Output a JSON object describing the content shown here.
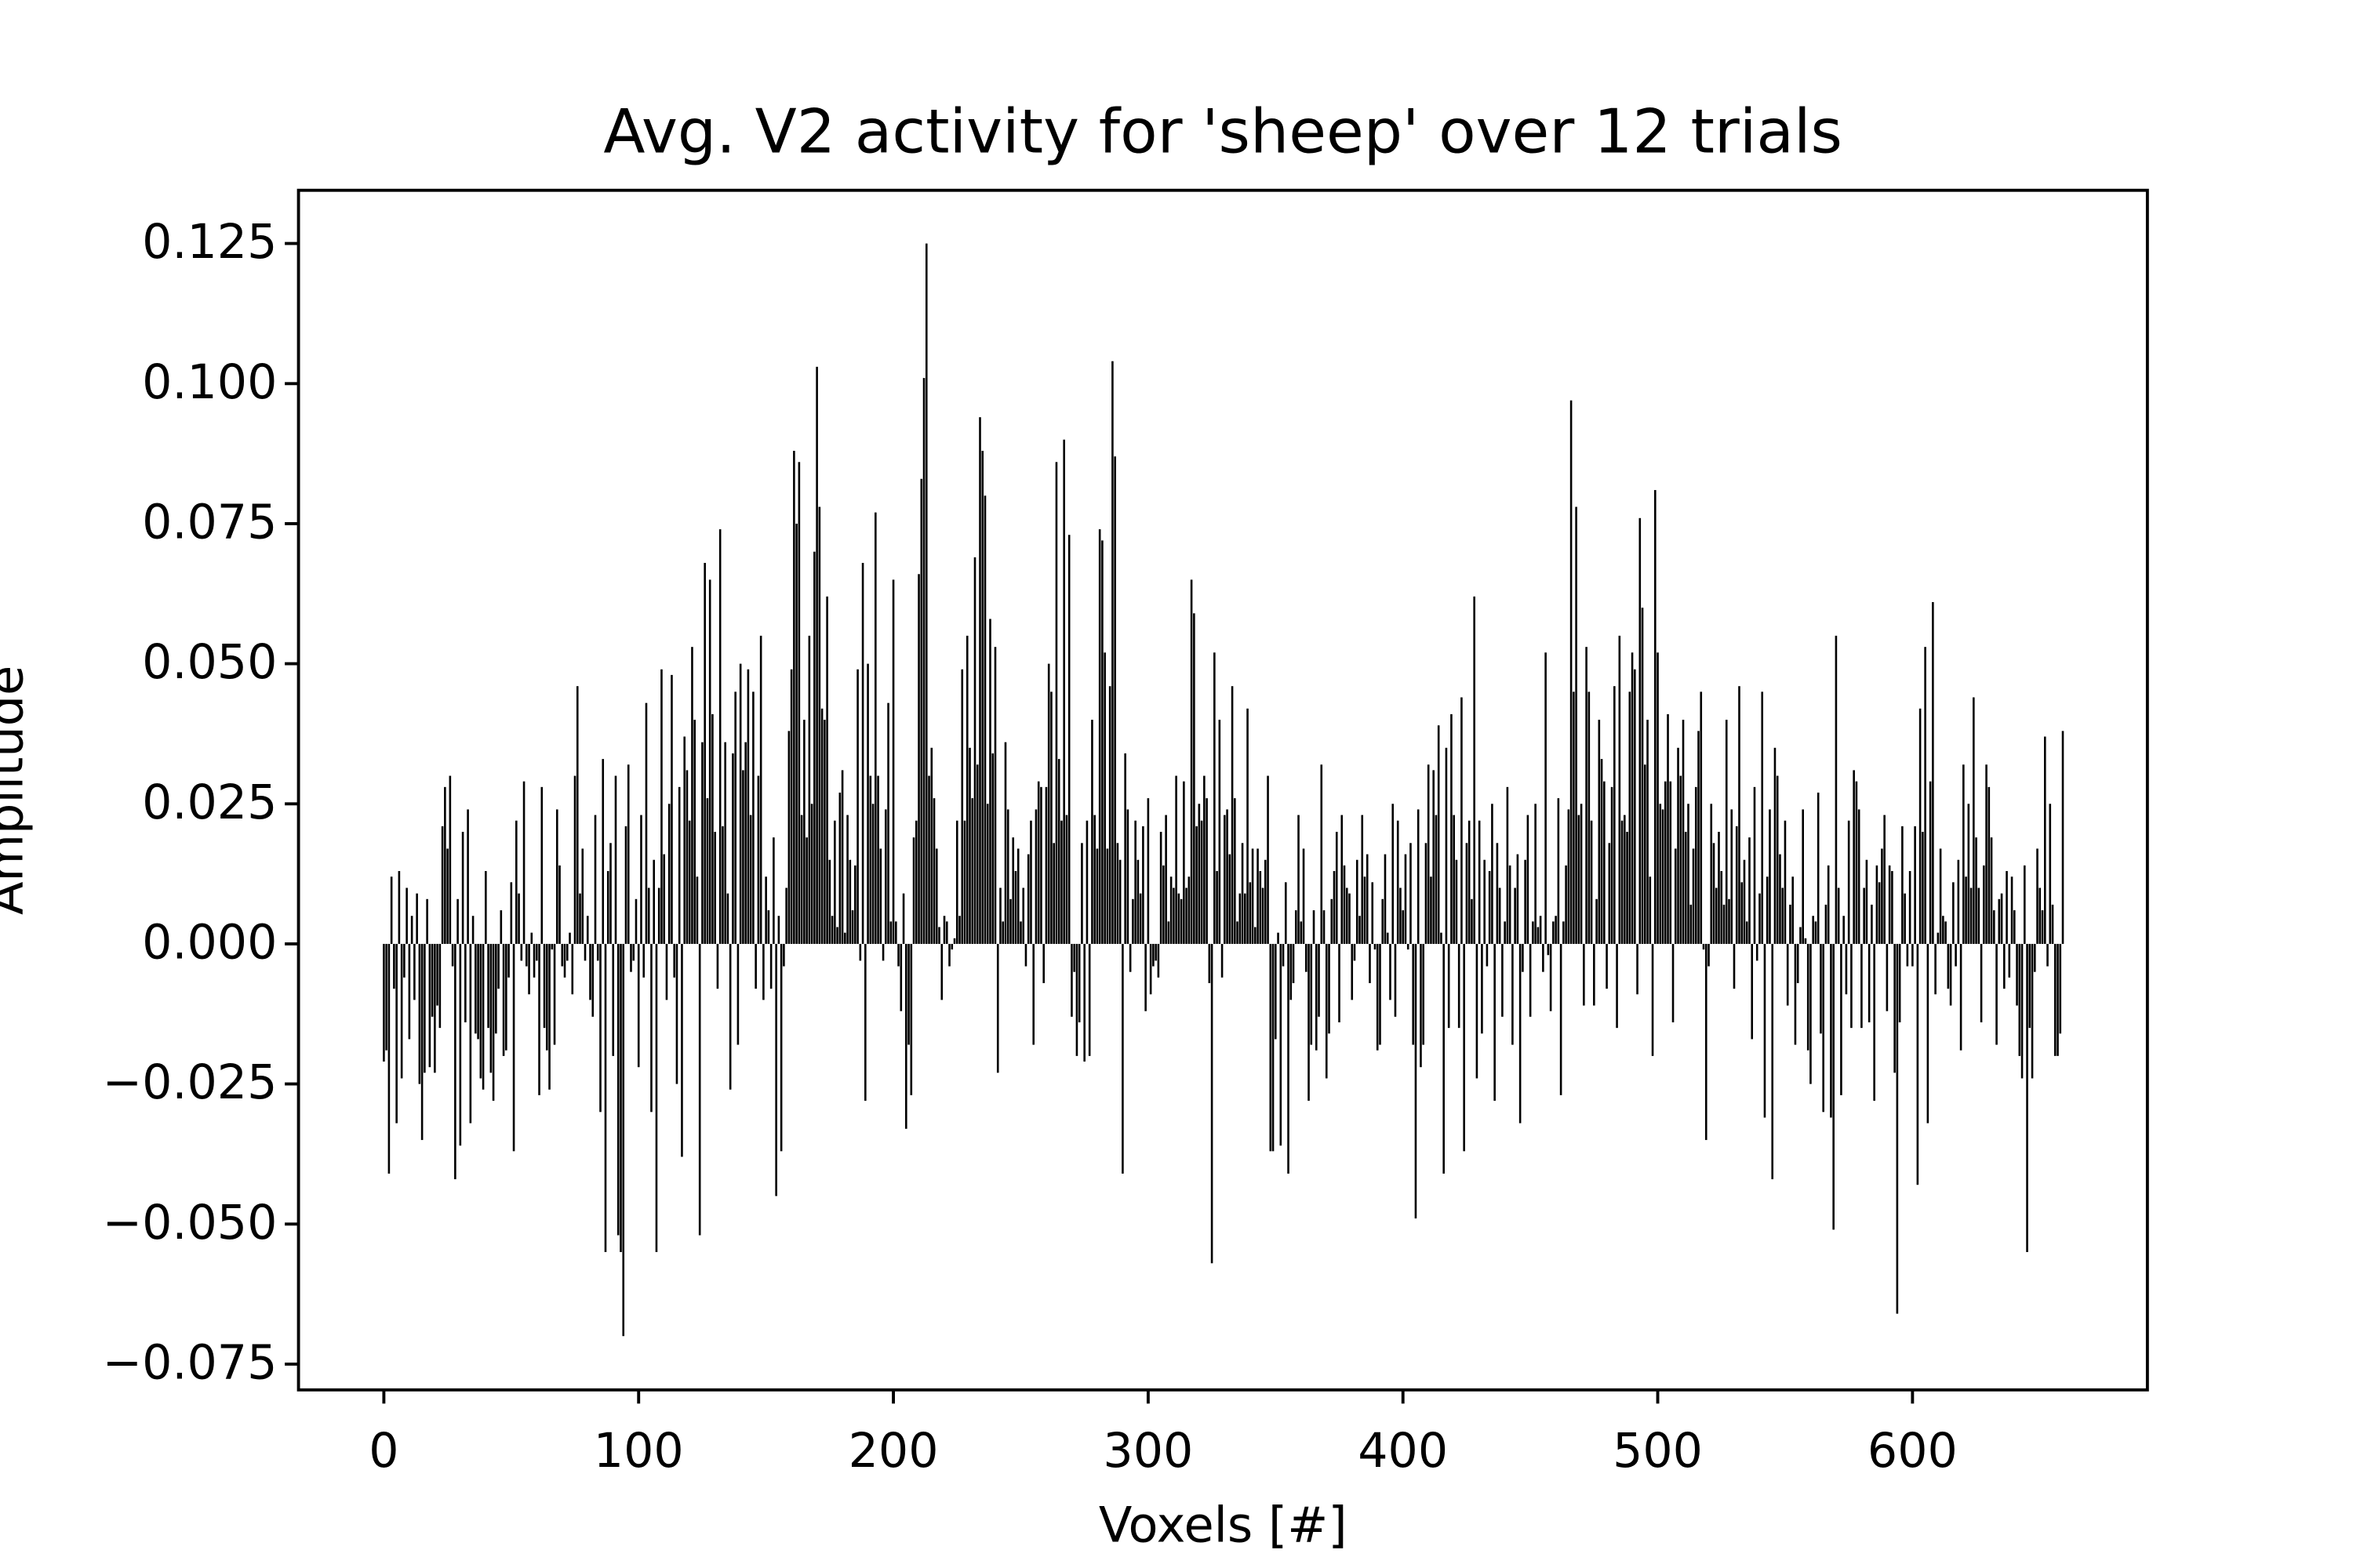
{
  "chart_data": {
    "type": "bar",
    "title": "Avg. V2 activity for 'sheep' over 12 trials",
    "xlabel": "Voxels [#]",
    "ylabel": "Amplitude",
    "color": "#000000",
    "xlim": [
      -33.5,
      692.2
    ],
    "ylim": [
      -0.0796,
      0.1345
    ],
    "xticks": [
      0,
      100,
      200,
      300,
      400,
      500,
      600
    ],
    "yticks": [
      {
        "value": -0.075,
        "label": "−0.075"
      },
      {
        "value": -0.05,
        "label": "−0.050"
      },
      {
        "value": -0.025,
        "label": "−0.025"
      },
      {
        "value": 0,
        "label": "0.000"
      },
      0.025,
      {
        "value": 0.05,
        "label": "0.050"
      },
      0.075,
      {
        "value": 0.1,
        "label": "0.100"
      },
      0.125
    ],
    "values": [
      -0.021,
      -0.019,
      -0.041,
      0.012,
      -0.008,
      -0.032,
      0.013,
      -0.024,
      -0.006,
      0.01,
      -0.017,
      0.005,
      -0.01,
      0.009,
      -0.025,
      -0.035,
      -0.023,
      0.008,
      -0.022,
      -0.013,
      -0.023,
      -0.011,
      -0.015,
      0.021,
      0.028,
      0.017,
      0.03,
      -0.004,
      -0.042,
      0.008,
      -0.036,
      0.02,
      -0.014,
      0.024,
      -0.032,
      0.005,
      -0.016,
      -0.017,
      -0.024,
      -0.026,
      0.013,
      -0.015,
      -0.023,
      -0.028,
      -0.016,
      -0.008,
      0.006,
      -0.02,
      -0.019,
      -0.006,
      0.011,
      -0.037,
      0.022,
      0.009,
      -0.003,
      0.029,
      -0.004,
      -0.009,
      0.002,
      -0.006,
      -0.003,
      -0.027,
      0.028,
      -0.015,
      -0.019,
      -0.026,
      -0.001,
      -0.018,
      0.024,
      0.014,
      -0.004,
      -0.006,
      -0.003,
      0.002,
      -0.009,
      0.03,
      0.046,
      0.009,
      0.017,
      -0.003,
      0.005,
      -0.01,
      -0.013,
      0.023,
      -0.003,
      -0.03,
      0.033,
      -0.055,
      0.013,
      0.018,
      -0.02,
      0.03,
      -0.052,
      -0.055,
      -0.07,
      0.021,
      0.032,
      -0.005,
      -0.003,
      0.008,
      -0.022,
      0.023,
      -0.006,
      0.043,
      0.01,
      -0.03,
      0.015,
      -0.055,
      0.01,
      0.049,
      0.016,
      -0.01,
      0.025,
      0.048,
      -0.006,
      -0.025,
      0.028,
      -0.038,
      0.037,
      0.031,
      0.022,
      0.053,
      0.04,
      0.012,
      -0.052,
      0.036,
      0.068,
      0.026,
      0.065,
      0.041,
      0.02,
      -0.008,
      0.074,
      0.021,
      0.036,
      0.009,
      -0.026,
      0.034,
      0.045,
      -0.018,
      0.05,
      0.031,
      0.036,
      0.049,
      0.023,
      0.045,
      -0.008,
      0.03,
      0.055,
      -0.01,
      0.012,
      0.006,
      -0.008,
      0.019,
      -0.045,
      0.005,
      -0.037,
      -0.004,
      0.01,
      0.038,
      0.049,
      0.088,
      0.075,
      0.086,
      0.023,
      0.04,
      0.019,
      0.055,
      0.025,
      0.07,
      0.103,
      0.078,
      0.042,
      0.04,
      0.062,
      0.015,
      0.005,
      0.022,
      0.003,
      0.027,
      0.031,
      0.002,
      0.023,
      0.015,
      0.006,
      0.014,
      0.049,
      -0.003,
      0.068,
      -0.028,
      0.05,
      0.03,
      0.025,
      0.077,
      0.03,
      0.017,
      -0.003,
      0.024,
      0.043,
      0.004,
      0.065,
      0.004,
      -0.004,
      -0.012,
      0.009,
      -0.033,
      -0.018,
      -0.027,
      0.019,
      0.022,
      0.066,
      0.083,
      0.101,
      0.125,
      0.03,
      0.035,
      0.026,
      0.017,
      0.003,
      -0.01,
      0.005,
      0.004,
      -0.004,
      -0.001,
      0.001,
      0.022,
      0.005,
      0.049,
      0.022,
      0.055,
      0.035,
      0.026,
      0.069,
      0.032,
      0.094,
      0.088,
      0.08,
      0.025,
      0.058,
      0.034,
      0.053,
      -0.023,
      0.01,
      0.004,
      0.036,
      0.024,
      0.008,
      0.019,
      0.013,
      0.017,
      0.004,
      0.01,
      -0.004,
      0.016,
      0.022,
      -0.018,
      0.024,
      0.029,
      0.028,
      -0.007,
      0.028,
      0.05,
      0.045,
      0.018,
      0.086,
      0.033,
      0.022,
      0.09,
      0.023,
      0.073,
      -0.013,
      -0.005,
      -0.02,
      -0.014,
      0.018,
      -0.021,
      0.022,
      -0.02,
      0.04,
      0.023,
      0.017,
      0.074,
      0.072,
      0.052,
      0.017,
      0.046,
      0.104,
      0.087,
      0.018,
      0.015,
      -0.041,
      0.034,
      0.024,
      -0.005,
      0.008,
      0.022,
      0.015,
      0.009,
      0.021,
      -0.012,
      0.026,
      -0.009,
      -0.004,
      -0.003,
      -0.006,
      0.02,
      0.014,
      0.023,
      0.004,
      0.012,
      0.01,
      0.03,
      0.009,
      0.008,
      0.029,
      0.01,
      0.012,
      0.065,
      0.059,
      0.021,
      0.025,
      0.022,
      0.03,
      0.026,
      -0.007,
      -0.057,
      0.052,
      0.013,
      0.04,
      -0.006,
      0.023,
      0.024,
      0.016,
      0.046,
      0.026,
      0.004,
      0.009,
      0.018,
      0.009,
      0.042,
      0.011,
      0.017,
      0.003,
      0.017,
      0.013,
      0.01,
      0.015,
      0.03,
      -0.037,
      -0.037,
      -0.017,
      0.002,
      -0.036,
      -0.004,
      0.011,
      -0.041,
      -0.01,
      -0.007,
      0.006,
      0.023,
      0.004,
      0.017,
      -0.005,
      -0.028,
      -0.018,
      0.006,
      -0.019,
      -0.013,
      0.032,
      0.006,
      -0.024,
      -0.016,
      0.008,
      0.013,
      0.02,
      -0.014,
      0.023,
      0.014,
      0.01,
      0.009,
      -0.01,
      -0.003,
      0.015,
      0.005,
      0.023,
      0.012,
      0.016,
      -0.007,
      0.011,
      -0.001,
      -0.019,
      -0.018,
      0.008,
      0.016,
      0.002,
      -0.01,
      0.025,
      -0.013,
      0.022,
      0.01,
      0.006,
      0.016,
      -0.001,
      0.018,
      -0.018,
      -0.049,
      0.024,
      -0.022,
      -0.018,
      0.018,
      0.032,
      0.012,
      0.031,
      0.023,
      0.039,
      0.002,
      -0.041,
      0.035,
      -0.015,
      0.041,
      0.023,
      0.015,
      -0.015,
      0.044,
      -0.037,
      0.018,
      0.022,
      0.008,
      0.062,
      -0.024,
      0.022,
      -0.016,
      0.015,
      -0.004,
      0.013,
      0.025,
      -0.028,
      0.018,
      0.01,
      -0.013,
      0.004,
      0.028,
      0.014,
      -0.018,
      0.01,
      0.016,
      -0.032,
      -0.005,
      0.015,
      0.023,
      -0.013,
      0.004,
      0.025,
      0.003,
      0.005,
      -0.005,
      0.052,
      -0.002,
      -0.012,
      0.004,
      0.005,
      0.026,
      -0.027,
      0.004,
      0.014,
      0.024,
      0.097,
      0.045,
      0.078,
      0.023,
      0.025,
      -0.011,
      0.053,
      0.045,
      0.022,
      -0.011,
      0.008,
      0.04,
      0.033,
      0.029,
      -0.008,
      0.018,
      0.028,
      0.046,
      -0.015,
      0.055,
      0.022,
      0.023,
      0.02,
      0.045,
      0.052,
      0.049,
      -0.009,
      0.076,
      0.06,
      0.032,
      0.04,
      0.012,
      -0.02,
      0.081,
      0.052,
      0.025,
      0.024,
      0.029,
      0.041,
      0.029,
      -0.014,
      0.017,
      0.035,
      0.03,
      0.04,
      0.02,
      0.025,
      0.007,
      0.017,
      0.028,
      0.038,
      0.045,
      -0.001,
      -0.035,
      -0.004,
      0.025,
      0.018,
      0.01,
      0.02,
      0.013,
      0.007,
      0.04,
      0.008,
      0.024,
      -0.008,
      0.021,
      0.046,
      0.011,
      0.015,
      0.004,
      0.019,
      -0.017,
      0.028,
      -0.003,
      0.009,
      0.045,
      -0.031,
      0.012,
      0.024,
      -0.042,
      0.035,
      0.03,
      0.016,
      0.01,
      0.022,
      -0.011,
      0.007,
      0.012,
      -0.018,
      -0.007,
      0.003,
      0.024,
      0.001,
      -0.019,
      -0.025,
      0.005,
      0.004,
      0.027,
      -0.016,
      -0.03,
      0.007,
      0.014,
      -0.031,
      -0.051,
      0.055,
      0.01,
      -0.027,
      0.005,
      -0.009,
      0.022,
      -0.015,
      0.031,
      0.029,
      0.024,
      -0.015,
      0.01,
      0.015,
      -0.014,
      0.007,
      -0.028,
      0.014,
      0.011,
      0.017,
      0.023,
      -0.012,
      0.014,
      0.013,
      -0.023,
      -0.066,
      -0.014,
      0.021,
      0.009,
      -0.004,
      0.013,
      -0.004,
      0.021,
      -0.043,
      0.042,
      0.02,
      0.053,
      -0.032,
      0.029,
      0.061,
      -0.009,
      0.002,
      0.017,
      0.005,
      0.004,
      -0.008,
      -0.011,
      0.011,
      -0.004,
      0.015,
      -0.019,
      0.032,
      0.012,
      0.025,
      0.01,
      0.044,
      0.019,
      0.01,
      -0.014,
      0.014,
      0.032,
      0.028,
      0.019,
      0.006,
      -0.018,
      0.008,
      0.009,
      -0.008,
      0.013,
      -0.006,
      0.012,
      0.006,
      -0.011,
      -0.02,
      -0.024,
      0.014,
      -0.055,
      -0.015,
      -0.024,
      -0.005,
      0.017,
      0.01,
      0.006,
      0.037,
      -0.004,
      0.025,
      0.007,
      -0.02,
      -0.02,
      -0.016,
      0.038
    ]
  }
}
